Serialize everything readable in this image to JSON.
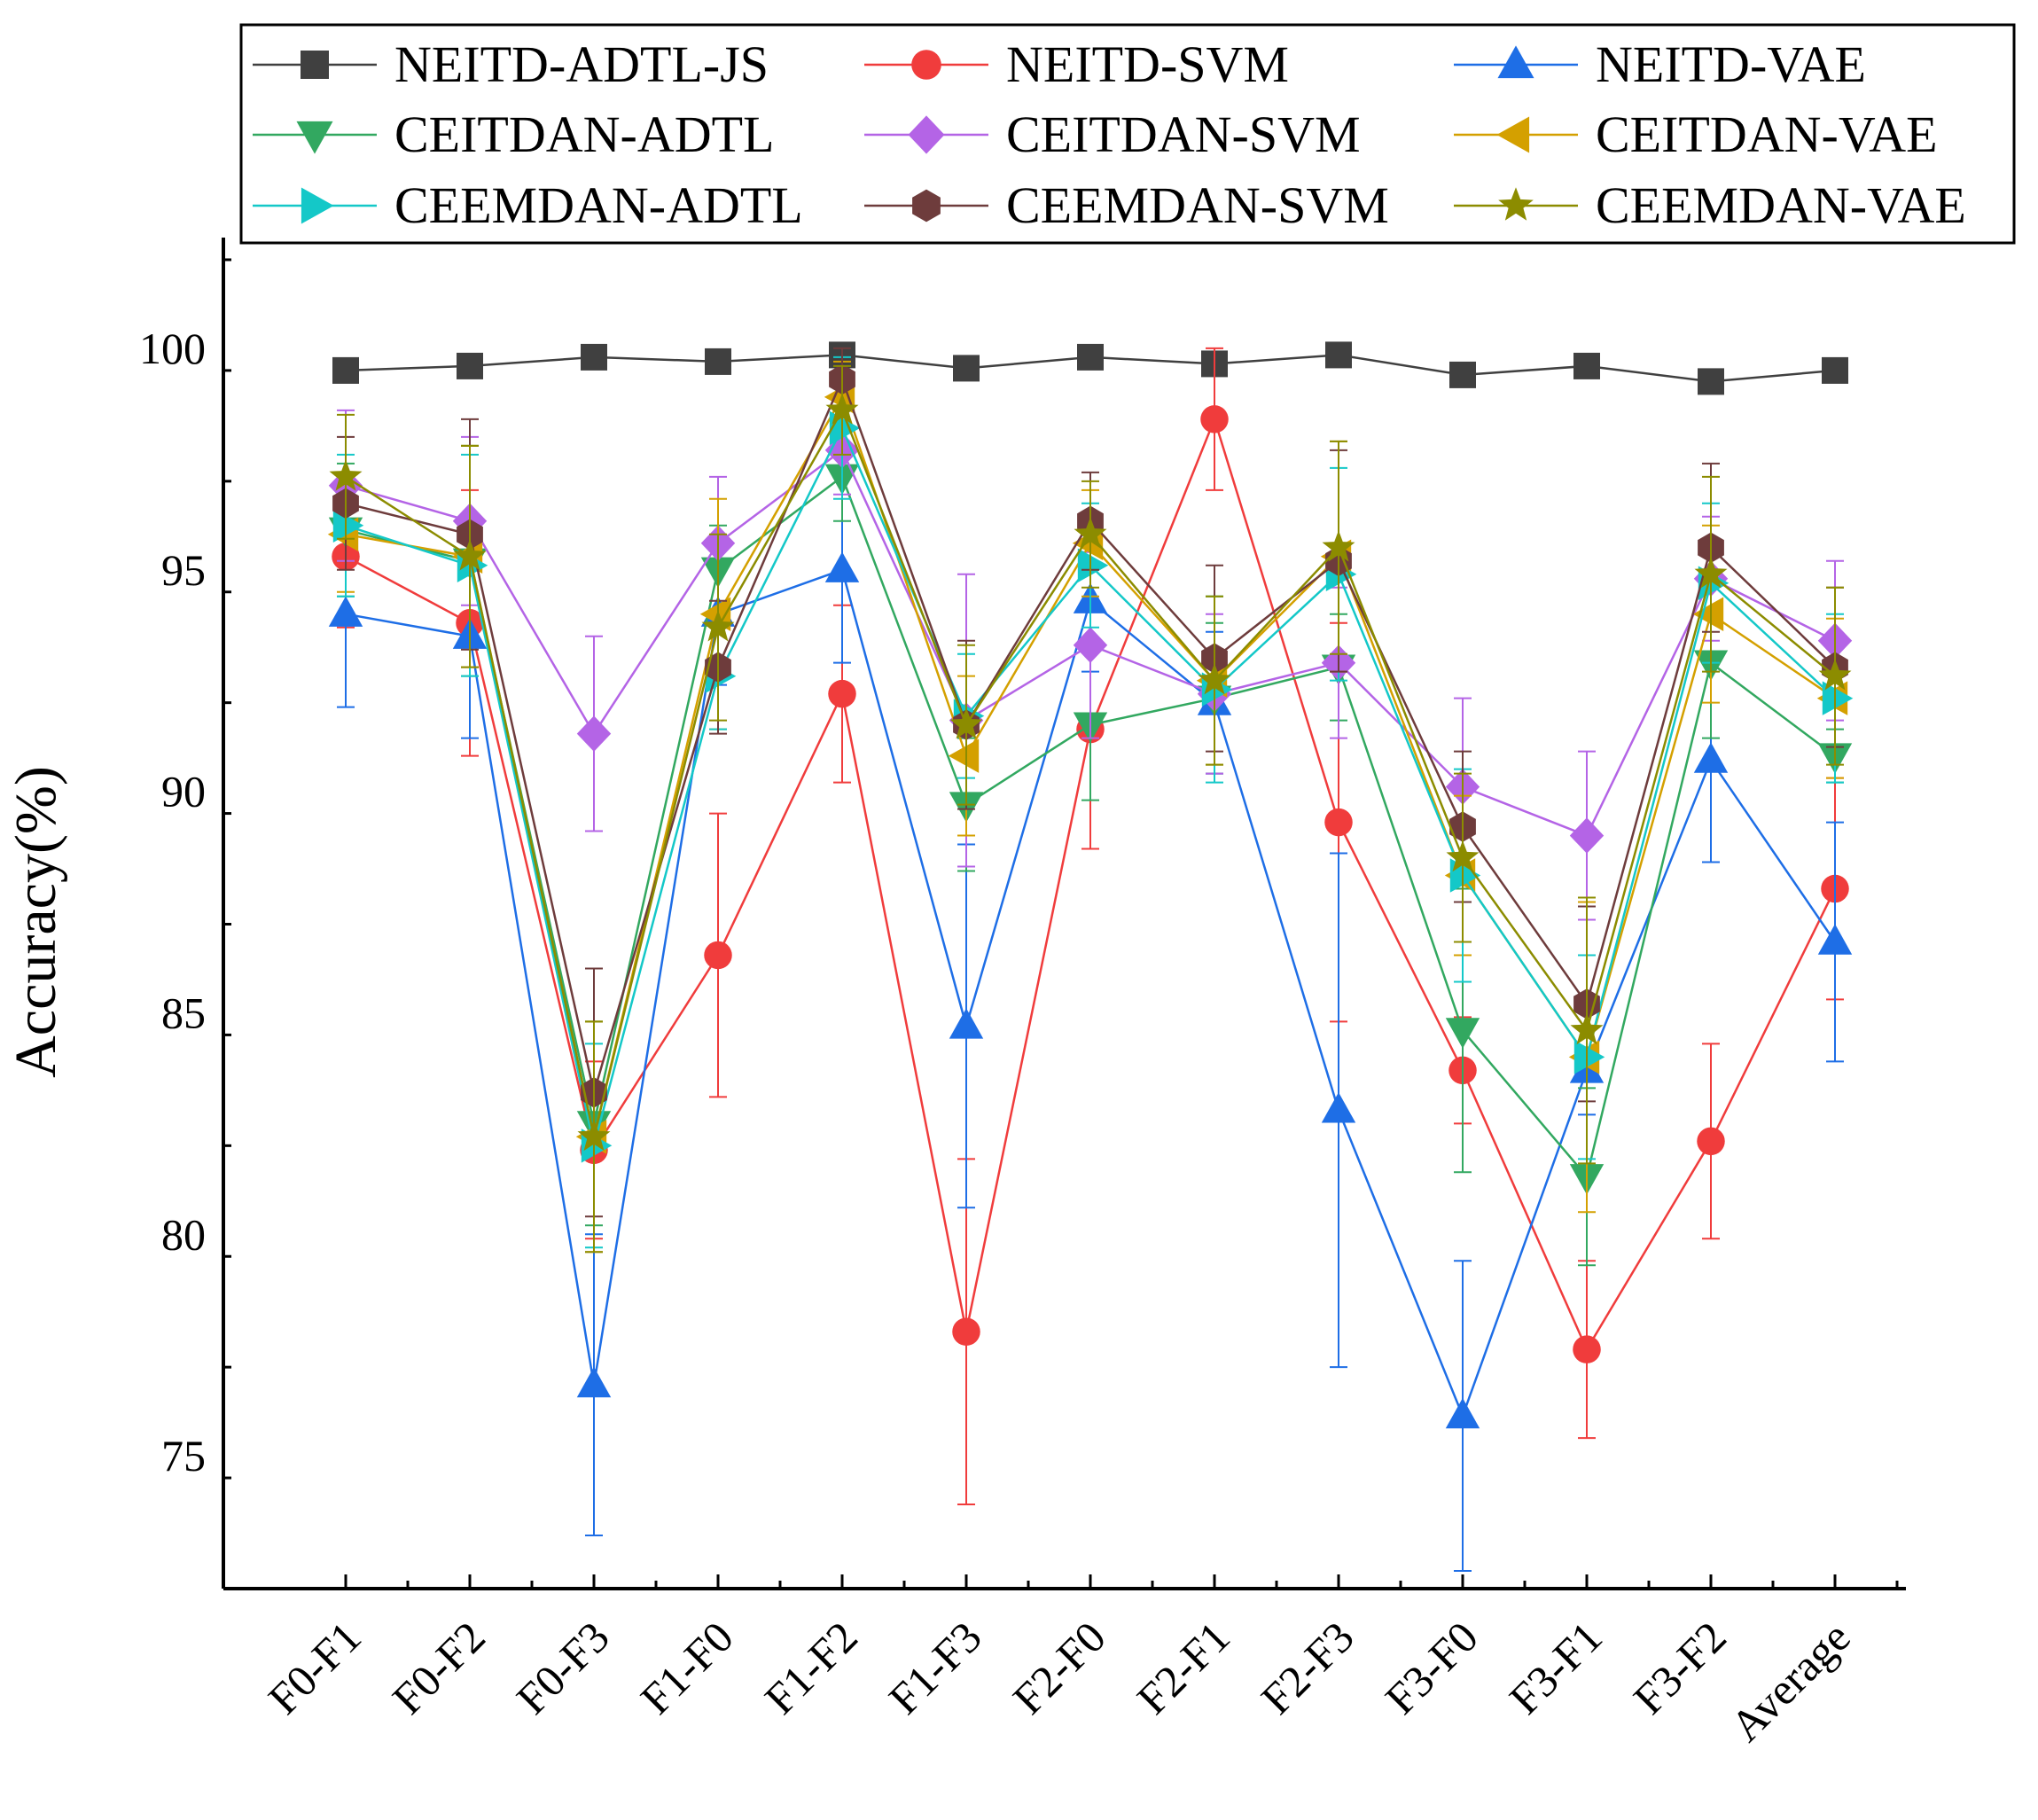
{
  "chart_data": {
    "type": "line",
    "title": "",
    "xlabel": "",
    "ylabel": "Accuracy(%)",
    "ylim": [
      72,
      102.5
    ],
    "yticks": [
      75,
      80,
      85,
      90,
      95,
      100
    ],
    "ytick_labels": [
      "75",
      "80",
      "85",
      "90",
      "95",
      "100"
    ],
    "categories": [
      "F0-F1",
      "F0-F2",
      "F0-F3",
      "F1-F0",
      "F1-F2",
      "F1-F3",
      "F2-F0",
      "F2-F1",
      "F2-F3",
      "F3-F0",
      "F3-F1",
      "F3-F2",
      "Average"
    ],
    "legend_position": "top",
    "error_bars": true,
    "series": [
      {
        "name": "NEITD-ADTL-JS",
        "color": "#404040",
        "marker": "square",
        "values": [
          99.5,
          99.6,
          99.8,
          99.7,
          99.85,
          99.55,
          99.8,
          99.65,
          99.85,
          99.4,
          99.6,
          99.25,
          99.5
        ],
        "errors": [
          0,
          0,
          0,
          0,
          0,
          0,
          0,
          0,
          0,
          0,
          0,
          0,
          0
        ]
      },
      {
        "name": "NEITD-SVM",
        "color": "#f03c3c",
        "marker": "circle",
        "values": [
          95.3,
          93.8,
          81.9,
          86.3,
          92.2,
          77.8,
          91.4,
          98.4,
          89.3,
          83.7,
          77.4,
          82.1,
          87.8
        ],
        "errors": [
          1.6,
          3.0,
          2.0,
          3.2,
          2.0,
          3.9,
          2.7,
          1.6,
          4.5,
          1.2,
          2.0,
          2.2,
          2.5
        ]
      },
      {
        "name": "NEITD-VAE",
        "color": "#1e6ee6",
        "marker": "triangle-up",
        "values": [
          94.0,
          93.5,
          76.6,
          94.0,
          95.0,
          84.7,
          94.3,
          92.0,
          82.8,
          75.9,
          83.7,
          90.7,
          86.6
        ],
        "errors": [
          2.1,
          2.3,
          3.4,
          1.6,
          2.1,
          4.1,
          1.6,
          1.6,
          5.8,
          3.5,
          1.0,
          2.3,
          2.7
        ]
      },
      {
        "name": "CEITDAN-ADTL",
        "color": "#32a860",
        "marker": "triangle-down",
        "values": [
          95.9,
          95.2,
          82.5,
          95.0,
          97.1,
          89.7,
          91.5,
          92.1,
          92.8,
          84.6,
          81.3,
          92.9,
          90.8
        ],
        "errors": [
          1.5,
          2.6,
          2.3,
          1.0,
          1.0,
          1.5,
          1.7,
          1.7,
          1.2,
          3.2,
          2.0,
          1.7,
          0.6
        ]
      },
      {
        "name": "CEITDAN-SVM",
        "color": "#b464e6",
        "marker": "diamond",
        "values": [
          96.9,
          96.1,
          91.3,
          95.6,
          97.7,
          91.6,
          93.3,
          92.2,
          92.9,
          90.1,
          89.0,
          94.8,
          93.4
        ],
        "errors": [
          1.7,
          1.9,
          2.2,
          1.5,
          1.0,
          3.3,
          2.1,
          1.8,
          1.7,
          2.0,
          1.9,
          1.4,
          1.8
        ]
      },
      {
        "name": "CEITDAN-VAE",
        "color": "#d4a000",
        "marker": "triangle-left",
        "values": [
          95.8,
          95.3,
          82.2,
          94.0,
          98.9,
          90.8,
          95.6,
          92.5,
          95.3,
          88.1,
          84.0,
          94.0,
          92.1
        ],
        "errors": [
          1.3,
          2.5,
          2.6,
          2.6,
          0.8,
          1.8,
          1.2,
          1.9,
          2.6,
          1.8,
          3.5,
          2.0,
          1.8
        ]
      },
      {
        "name": "CEEMDAN-ADTL",
        "color": "#14c8c8",
        "marker": "triangle-right",
        "values": [
          96.0,
          95.1,
          82.0,
          92.6,
          98.2,
          91.7,
          95.1,
          92.3,
          94.9,
          88.1,
          84.0,
          94.7,
          92.1
        ],
        "errors": [
          1.6,
          2.5,
          2.3,
          1.2,
          1.6,
          1.4,
          1.4,
          2.1,
          2.4,
          2.4,
          2.3,
          1.8,
          1.9
        ]
      },
      {
        "name": "CEEMDAN-SVM",
        "color": "#6e3c3c",
        "marker": "hexagon",
        "values": [
          96.5,
          95.8,
          83.2,
          92.8,
          99.3,
          91.5,
          96.1,
          93.0,
          95.2,
          89.2,
          85.2,
          95.5,
          92.8
        ],
        "errors": [
          1.5,
          2.6,
          2.8,
          1.5,
          0.7,
          1.9,
          1.1,
          2.1,
          2.5,
          1.7,
          2.2,
          1.9,
          1.8
        ]
      },
      {
        "name": "CEEMDAN-VAE",
        "color": "#8c8c00",
        "marker": "star",
        "values": [
          97.1,
          95.3,
          82.2,
          93.7,
          98.6,
          91.5,
          95.8,
          92.5,
          95.5,
          88.5,
          84.6,
          94.9,
          92.6
        ],
        "errors": [
          1.4,
          2.5,
          2.6,
          2.1,
          1.0,
          1.8,
          1.2,
          1.9,
          2.4,
          1.9,
          3.0,
          2.2,
          2.0
        ]
      }
    ]
  }
}
